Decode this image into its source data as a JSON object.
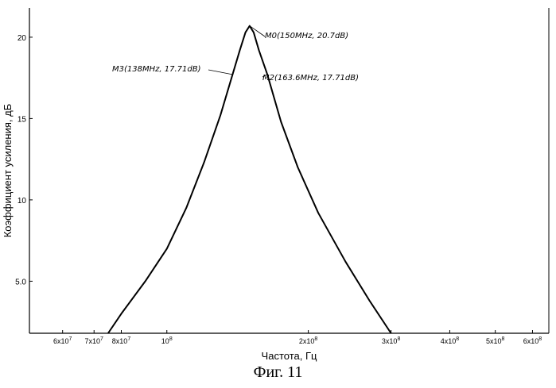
{
  "chart_data": {
    "type": "line",
    "xscale": "log",
    "xlabel": "Частота, Гц",
    "ylabel": "Коэффициент усиления, дБ",
    "xlim": [
      51000000,
      650000000
    ],
    "ylim": [
      1.8,
      21.8
    ],
    "x_ticks": [
      {
        "value": 60000000,
        "base": "6x10",
        "exp": "7"
      },
      {
        "value": 70000000,
        "base": "7x10",
        "exp": "7"
      },
      {
        "value": 80000000,
        "base": "8x10",
        "exp": "7"
      },
      {
        "value": 100000000,
        "base": "10",
        "exp": "8"
      },
      {
        "value": 200000000,
        "base": "2x10",
        "exp": "8"
      },
      {
        "value": 300000000,
        "base": "3x10",
        "exp": "8"
      },
      {
        "value": 400000000,
        "base": "4x10",
        "exp": "8"
      },
      {
        "value": 500000000,
        "base": "5x10",
        "exp": "8"
      },
      {
        "value": 600000000,
        "base": "6x10",
        "exp": "8"
      }
    ],
    "y_ticks": [
      {
        "value": 5,
        "label": "5.0"
      },
      {
        "value": 10,
        "label": "10"
      },
      {
        "value": 15,
        "label": "15"
      },
      {
        "value": 20,
        "label": "20"
      }
    ],
    "series": [
      {
        "x": [
          75000000,
          80000000,
          90000000,
          100000000,
          110000000,
          120000000,
          130000000,
          138000000,
          143000000,
          147000000,
          150000000,
          153000000,
          157000000,
          163600000,
          175000000,
          190000000,
          210000000,
          240000000,
          270000000,
          300000000
        ],
        "y": [
          1.8,
          3.0,
          5.0,
          7.0,
          9.5,
          12.3,
          15.2,
          17.71,
          19.2,
          20.3,
          20.7,
          20.3,
          19.2,
          17.71,
          14.8,
          12.0,
          9.2,
          6.2,
          3.8,
          1.8
        ]
      }
    ],
    "annotations": [
      {
        "label": "M0(150MHz, 20.7dB)",
        "x": 150000000,
        "y": 20.7
      },
      {
        "label": "M3(138MHz, 17.71dB)",
        "x": 138000000,
        "y": 17.71
      },
      {
        "label": "M2(163.6MHz, 17.71dB)",
        "x": 163600000,
        "y": 17.71
      }
    ],
    "grid": false
  },
  "caption": "Фиг. 11"
}
